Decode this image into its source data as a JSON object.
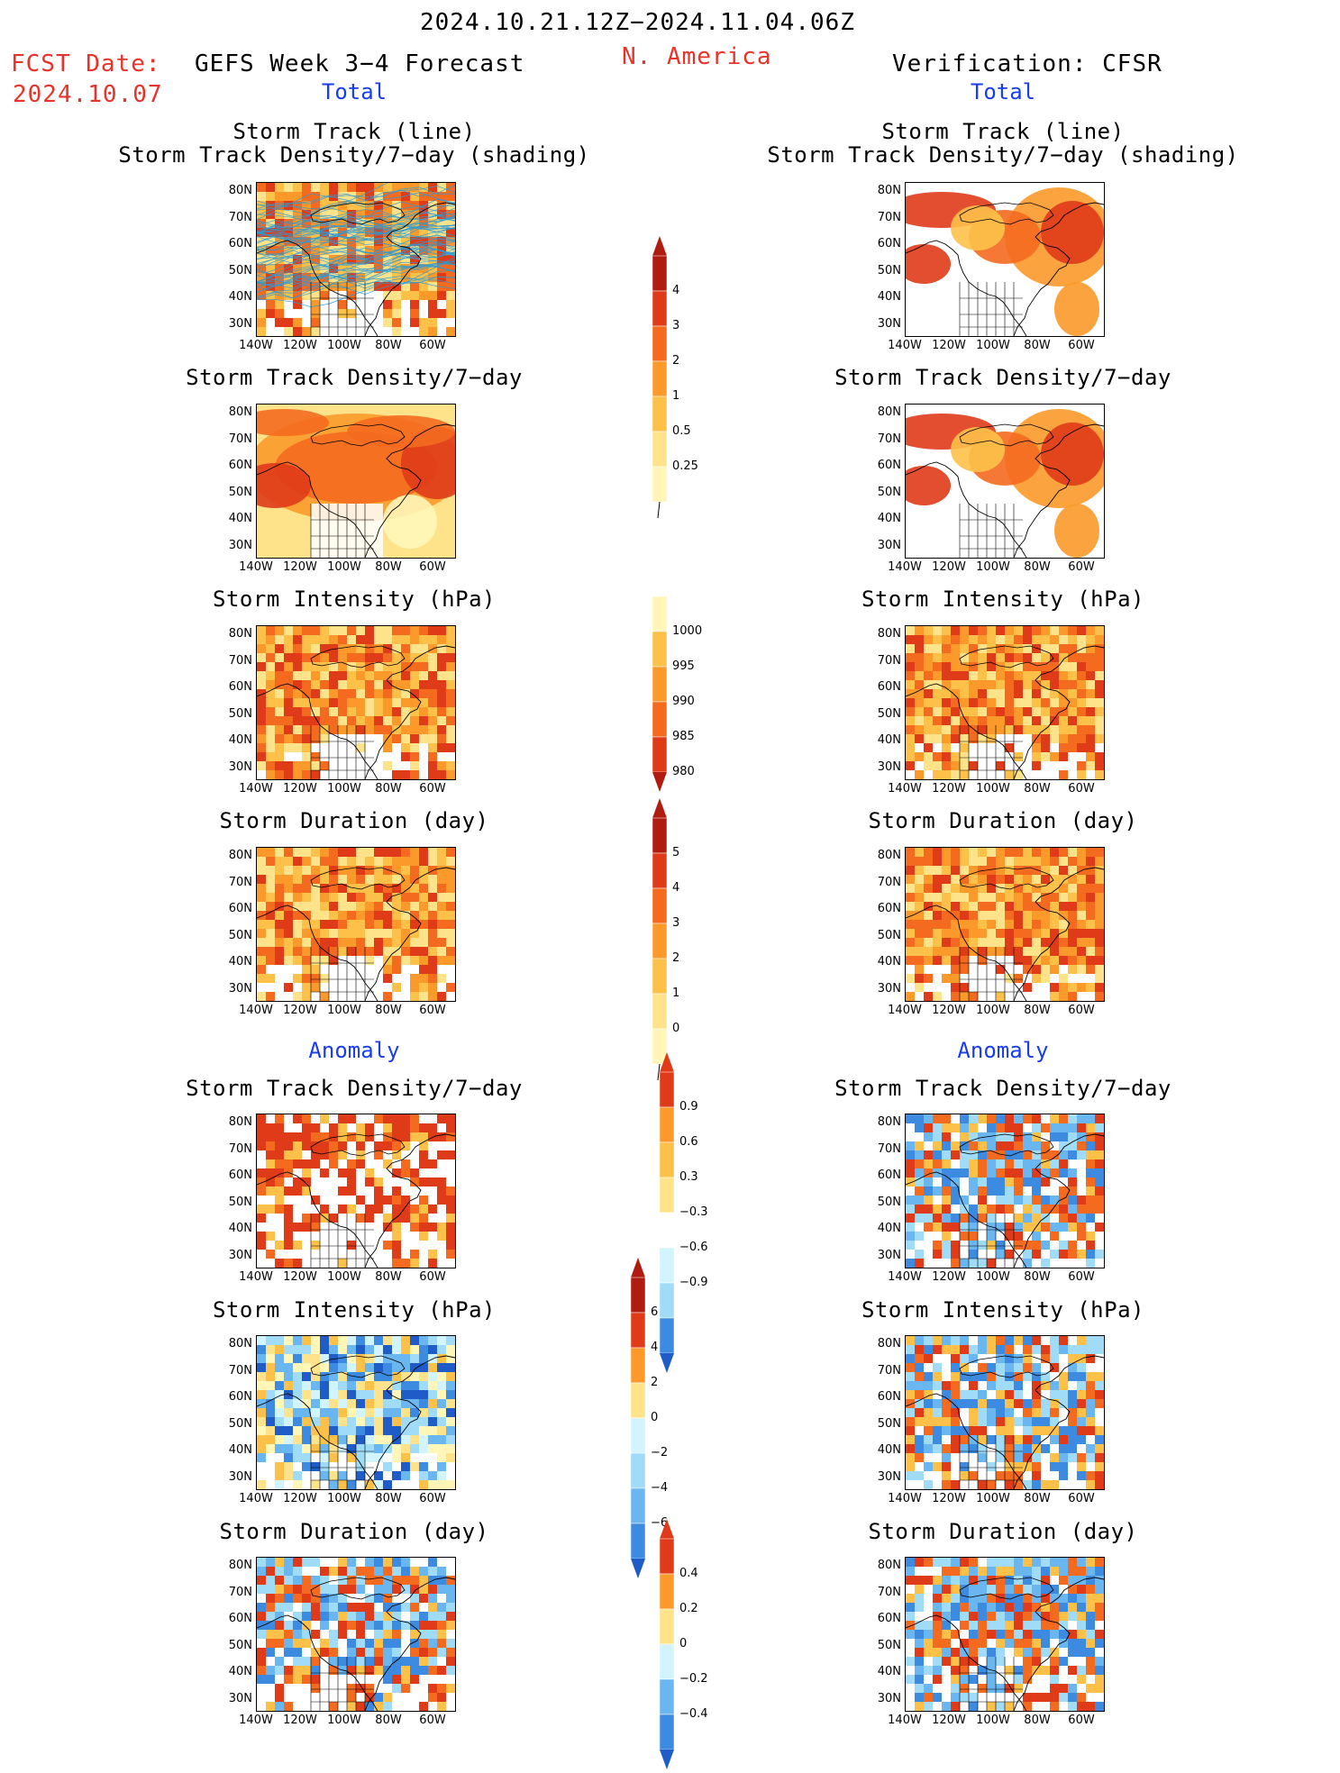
{
  "header": {
    "period": "2024.10.21.12Z−2024.11.04.06Z",
    "fcst_label": "FCST Date:",
    "fcst_date": "2024.10.07",
    "model": "GEFS Week 3−4 Forecast",
    "region": "N. America",
    "verification": "Verification: CFSR",
    "total_left": "Total",
    "total_right": "Total",
    "anomaly_left": "Anomaly",
    "anomaly_right": "Anomaly"
  },
  "axis": {
    "lat_labels": [
      "80N",
      "70N",
      "60N",
      "50N",
      "40N",
      "30N"
    ],
    "lon_labels": [
      "140W",
      "120W",
      "100W",
      "80W",
      "60W"
    ]
  },
  "panels": {
    "storm_track_title_1": "Storm Track (line)",
    "storm_track_title_2": "Storm Track Density/7−day (shading)",
    "density_title": "Storm Track Density/7−day",
    "intensity_title": "Storm Intensity (hPa)",
    "duration_title": "Storm Duration (day)"
  },
  "colorbars": {
    "density_total": [
      "4",
      "3",
      "2",
      "1",
      "0.5",
      "0.25"
    ],
    "intensity_total": [
      "1000",
      "995",
      "990",
      "985",
      "980"
    ],
    "duration_total": [
      "5",
      "4",
      "3",
      "2",
      "1",
      "0"
    ],
    "density_anom": [
      "0.9",
      "0.6",
      "0.3",
      "−0.3",
      "−0.6",
      "−0.9"
    ],
    "intensity_anom": [
      "6",
      "4",
      "2",
      "0",
      "−2",
      "−4",
      "−6"
    ],
    "duration_anom": [
      "0.4",
      "0.2",
      "0",
      "−0.2",
      "−0.4"
    ]
  },
  "colors": {
    "warm": [
      "#fff6b8",
      "#ffe38a",
      "#fdc149",
      "#fb9a2a",
      "#f46a1f",
      "#df3b18",
      "#b01d10"
    ],
    "cool": [
      "#d2f4ff",
      "#a0dcf8",
      "#6ab6f0",
      "#3d8be0",
      "#1f5cc8"
    ],
    "track_lines": "#2a9bd6"
  }
}
